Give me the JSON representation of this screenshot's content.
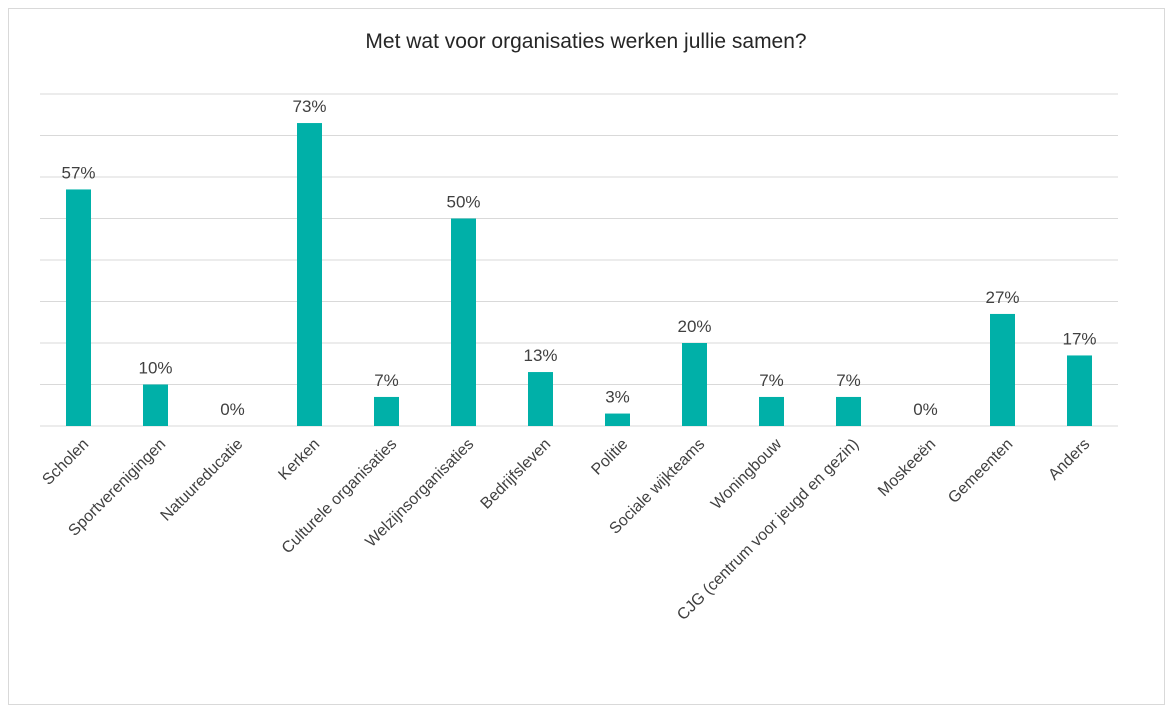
{
  "chart_data": {
    "type": "bar",
    "title": "Met wat voor organisaties werken jullie samen?",
    "categories": [
      "Scholen",
      "Sportverenigingen",
      "Natuureducatie",
      "Kerken",
      "Culturele organisaties",
      "Welzijnsorganisaties",
      "Bedrijfsleven",
      "Politie",
      "Sociale wijkteams",
      "Woningbouw",
      "CJG (centrum voor jeugd en gezin)",
      "Moskeeën",
      "Gemeenten",
      "Anders"
    ],
    "values": [
      57,
      10,
      0,
      73,
      7,
      50,
      13,
      3,
      20,
      7,
      7,
      0,
      27,
      17
    ],
    "data_labels": [
      "57%",
      "10%",
      "0%",
      "73%",
      "7%",
      "50%",
      "13%",
      "3%",
      "20%",
      "7%",
      "7%",
      "0%",
      "27%",
      "17%"
    ],
    "ylim": [
      0,
      80
    ],
    "grid": true,
    "bar_color": "#00b0a8",
    "grid_color": "#d9d9d9"
  }
}
